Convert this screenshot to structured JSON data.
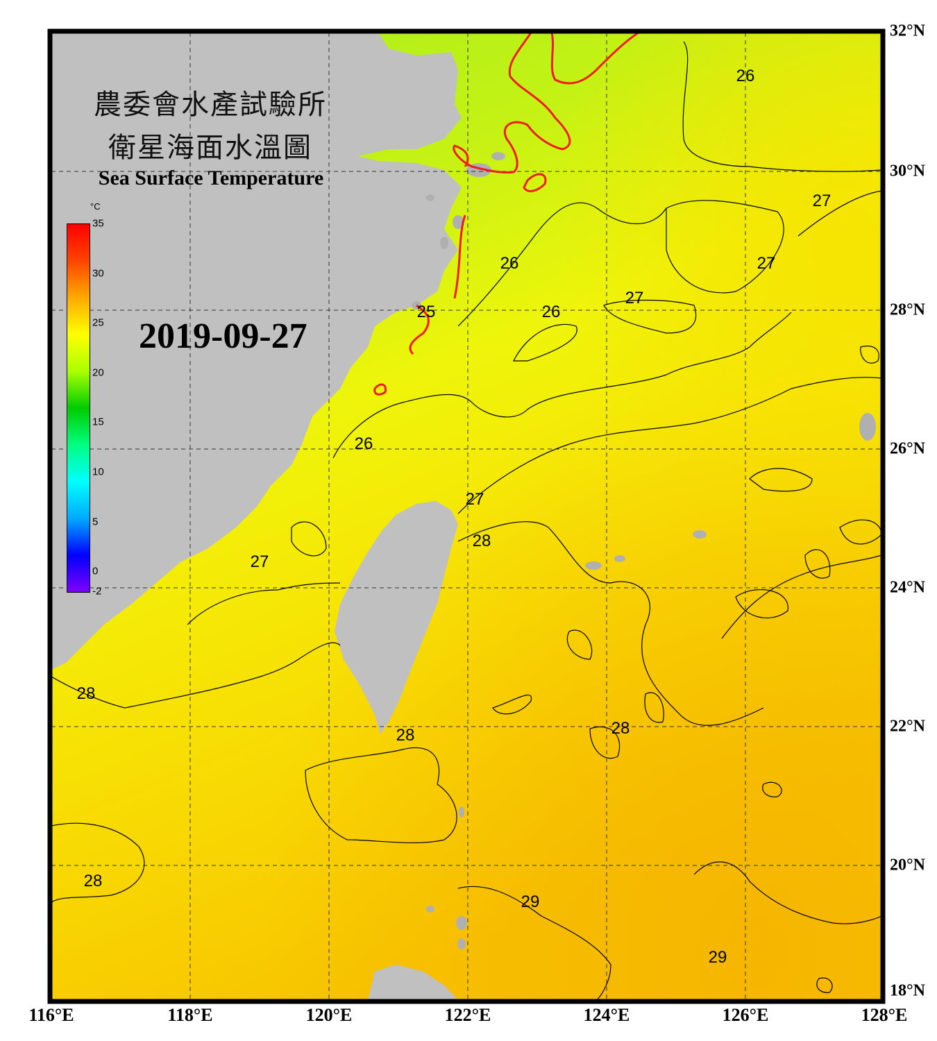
{
  "title": {
    "line1": "農委會水產試驗所",
    "line2": "衛星海面水溫圖",
    "english": "Sea Surface Temperature"
  },
  "date": "2019-09-27",
  "colorbar": {
    "unit": "°C",
    "min": -2,
    "max": 35,
    "tick_labels": [
      "35",
      "30",
      "25",
      "20",
      "15",
      "10",
      "5",
      "0",
      "-2"
    ],
    "stops": [
      "#7f00ff",
      "#0000ff",
      "#00aaff",
      "#00ffff",
      "#00ff80",
      "#00cc00",
      "#aaff00",
      "#ffff00",
      "#ffaa00",
      "#ff4400",
      "#ff0000"
    ]
  },
  "axes": {
    "longitude_labels": [
      "116°E",
      "118°E",
      "120°E",
      "122°E",
      "124°E",
      "126°E",
      "128°E"
    ],
    "latitude_labels": [
      "32°N",
      "30°N",
      "28°N",
      "26°N",
      "24°N",
      "22°N",
      "20°N",
      "18°N"
    ],
    "lon_range": [
      116,
      128
    ],
    "lat_range": [
      18,
      32
    ],
    "grid": "dashed"
  },
  "contour_labels": [
    {
      "text": "26",
      "lon": 126.0,
      "lat": 31.3
    },
    {
      "text": "27",
      "lon": 127.1,
      "lat": 29.5
    },
    {
      "text": "26",
      "lon": 122.6,
      "lat": 28.6
    },
    {
      "text": "27",
      "lon": 126.3,
      "lat": 28.6
    },
    {
      "text": "27",
      "lon": 124.4,
      "lat": 28.1
    },
    {
      "text": "26",
      "lon": 123.2,
      "lat": 27.9
    },
    {
      "text": "25",
      "lon": 121.4,
      "lat": 27.9
    },
    {
      "text": "26",
      "lon": 120.5,
      "lat": 26.0
    },
    {
      "text": "27",
      "lon": 122.1,
      "lat": 25.2
    },
    {
      "text": "28",
      "lon": 122.2,
      "lat": 24.6
    },
    {
      "text": "27",
      "lon": 119.0,
      "lat": 24.3
    },
    {
      "text": "28",
      "lon": 116.5,
      "lat": 22.4
    },
    {
      "text": "28",
      "lon": 121.1,
      "lat": 21.8
    },
    {
      "text": "28",
      "lon": 124.2,
      "lat": 21.9
    },
    {
      "text": "29",
      "lon": 122.9,
      "lat": 19.4
    },
    {
      "text": "28",
      "lon": 116.6,
      "lat": 19.7
    },
    {
      "text": "29",
      "lon": 125.6,
      "lat": 18.6
    }
  ],
  "colors": {
    "land": "#c0c0c0",
    "contour": "#000000",
    "contour_25": "#ff2020",
    "sea_cool": "#a8f020",
    "sea_warm": "#f8d400"
  }
}
